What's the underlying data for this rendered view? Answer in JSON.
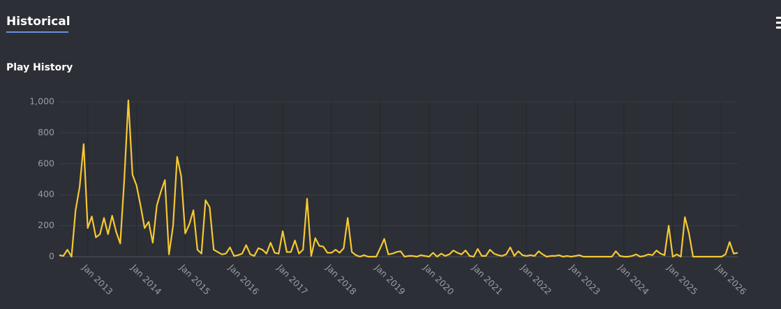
{
  "page": {
    "tab": "Historical"
  },
  "chart_data": {
    "type": "line",
    "title": "Play History",
    "x": [
      "2012-06",
      "2012-07",
      "2012-08",
      "2012-09",
      "2012-10",
      "2012-11",
      "2012-12",
      "2013-01",
      "2013-02",
      "2013-03",
      "2013-04",
      "2013-05",
      "2013-06",
      "2013-07",
      "2013-08",
      "2013-09",
      "2013-10",
      "2013-11",
      "2013-12",
      "2014-01",
      "2014-02",
      "2014-03",
      "2014-04",
      "2014-05",
      "2014-06",
      "2014-07",
      "2014-08",
      "2014-09",
      "2014-10",
      "2014-11",
      "2014-12",
      "2015-01",
      "2015-02",
      "2015-03",
      "2015-04",
      "2015-05",
      "2015-06",
      "2015-07",
      "2015-08",
      "2015-09",
      "2015-10",
      "2015-11",
      "2015-12",
      "2016-01",
      "2016-02",
      "2016-03",
      "2016-04",
      "2016-05",
      "2016-06",
      "2016-07",
      "2016-08",
      "2016-09",
      "2016-10",
      "2016-11",
      "2016-12",
      "2017-01",
      "2017-02",
      "2017-03",
      "2017-04",
      "2017-05",
      "2017-06",
      "2017-07",
      "2017-08",
      "2017-09",
      "2017-10",
      "2017-11",
      "2017-12",
      "2018-01",
      "2018-02",
      "2018-03",
      "2018-04",
      "2018-05",
      "2018-06",
      "2018-07",
      "2018-08",
      "2018-09",
      "2018-10",
      "2018-11",
      "2018-12",
      "2019-01",
      "2019-02",
      "2019-03",
      "2019-04",
      "2019-05",
      "2019-06",
      "2019-07",
      "2019-08",
      "2019-09",
      "2019-10",
      "2019-11",
      "2019-12",
      "2020-01",
      "2020-02",
      "2020-03",
      "2020-04",
      "2020-05",
      "2020-06",
      "2020-07",
      "2020-08",
      "2020-09",
      "2020-10",
      "2020-11",
      "2020-12",
      "2021-01",
      "2021-02",
      "2021-03",
      "2021-04",
      "2021-05",
      "2021-06",
      "2021-07",
      "2021-08",
      "2021-09",
      "2021-10",
      "2021-11",
      "2021-12",
      "2022-01",
      "2022-02",
      "2022-03",
      "2022-04",
      "2022-05",
      "2022-06",
      "2022-07",
      "2022-08",
      "2022-09",
      "2022-10",
      "2022-11",
      "2022-12",
      "2023-01",
      "2023-02",
      "2023-03",
      "2023-04",
      "2023-05",
      "2023-06",
      "2023-07",
      "2023-08",
      "2023-09",
      "2023-10",
      "2023-11",
      "2023-12",
      "2024-01",
      "2024-02",
      "2024-03",
      "2024-04",
      "2024-05",
      "2024-06",
      "2024-07",
      "2024-08",
      "2024-09",
      "2024-10",
      "2024-11",
      "2024-12",
      "2025-01",
      "2025-02",
      "2025-03",
      "2025-04",
      "2025-05",
      "2025-06",
      "2025-07",
      "2025-08",
      "2025-09",
      "2025-10",
      "2025-11",
      "2025-12",
      "2026-01",
      "2026-02",
      "2026-03",
      "2026-04",
      "2026-05"
    ],
    "series": [
      {
        "color": "#f5c932",
        "values": [
          10,
          5,
          45,
          0,
          300,
          450,
          727,
          185,
          260,
          125,
          145,
          250,
          145,
          265,
          160,
          85,
          500,
          1010,
          530,
          460,
          330,
          185,
          225,
          90,
          330,
          420,
          495,
          15,
          200,
          645,
          520,
          150,
          210,
          300,
          45,
          20,
          365,
          320,
          45,
          30,
          15,
          20,
          60,
          5,
          10,
          20,
          75,
          15,
          5,
          55,
          45,
          20,
          90,
          25,
          20,
          165,
          30,
          30,
          105,
          20,
          45,
          375,
          5,
          120,
          70,
          65,
          25,
          25,
          45,
          25,
          55,
          250,
          30,
          10,
          0,
          10,
          0,
          0,
          0,
          55,
          115,
          15,
          20,
          30,
          35,
          0,
          5,
          5,
          0,
          10,
          5,
          0,
          25,
          0,
          20,
          5,
          15,
          40,
          25,
          15,
          40,
          5,
          0,
          50,
          5,
          5,
          45,
          20,
          10,
          5,
          15,
          60,
          5,
          35,
          10,
          5,
          10,
          5,
          35,
          15,
          0,
          5,
          5,
          10,
          0,
          5,
          0,
          5,
          10,
          0,
          0,
          0,
          0,
          0,
          0,
          0,
          0,
          35,
          5,
          0,
          0,
          5,
          15,
          0,
          5,
          15,
          10,
          40,
          20,
          10,
          200,
          0,
          15,
          0,
          255,
          150,
          0,
          0,
          0,
          0,
          0,
          0,
          0,
          0,
          15,
          95,
          20,
          25
        ]
      }
    ],
    "xlim": [
      "2012-06",
      "2026-05"
    ],
    "xticks": [
      {
        "value": "2013-01",
        "label": "Jan 2013"
      },
      {
        "value": "2014-01",
        "label": "Jan 2014"
      },
      {
        "value": "2015-01",
        "label": "Jan 2015"
      },
      {
        "value": "2016-01",
        "label": "Jan 2016"
      },
      {
        "value": "2017-01",
        "label": "Jan 2017"
      },
      {
        "value": "2018-01",
        "label": "Jan 2018"
      },
      {
        "value": "2019-01",
        "label": "Jan 2019"
      },
      {
        "value": "2020-01",
        "label": "Jan 2020"
      },
      {
        "value": "2021-01",
        "label": "Jan 2021"
      },
      {
        "value": "2022-01",
        "label": "Jan 2022"
      },
      {
        "value": "2023-01",
        "label": "Jan 2023"
      },
      {
        "value": "2024-01",
        "label": "Jan 2024"
      },
      {
        "value": "2025-01",
        "label": "Jan 2025"
      },
      {
        "value": "2026-01",
        "label": "Jan 2026"
      }
    ],
    "ylim": [
      0,
      1000
    ],
    "yticks": [
      0,
      200,
      400,
      600,
      800,
      {
        "value": 1000,
        "label": "1,000"
      }
    ],
    "grid": true
  }
}
